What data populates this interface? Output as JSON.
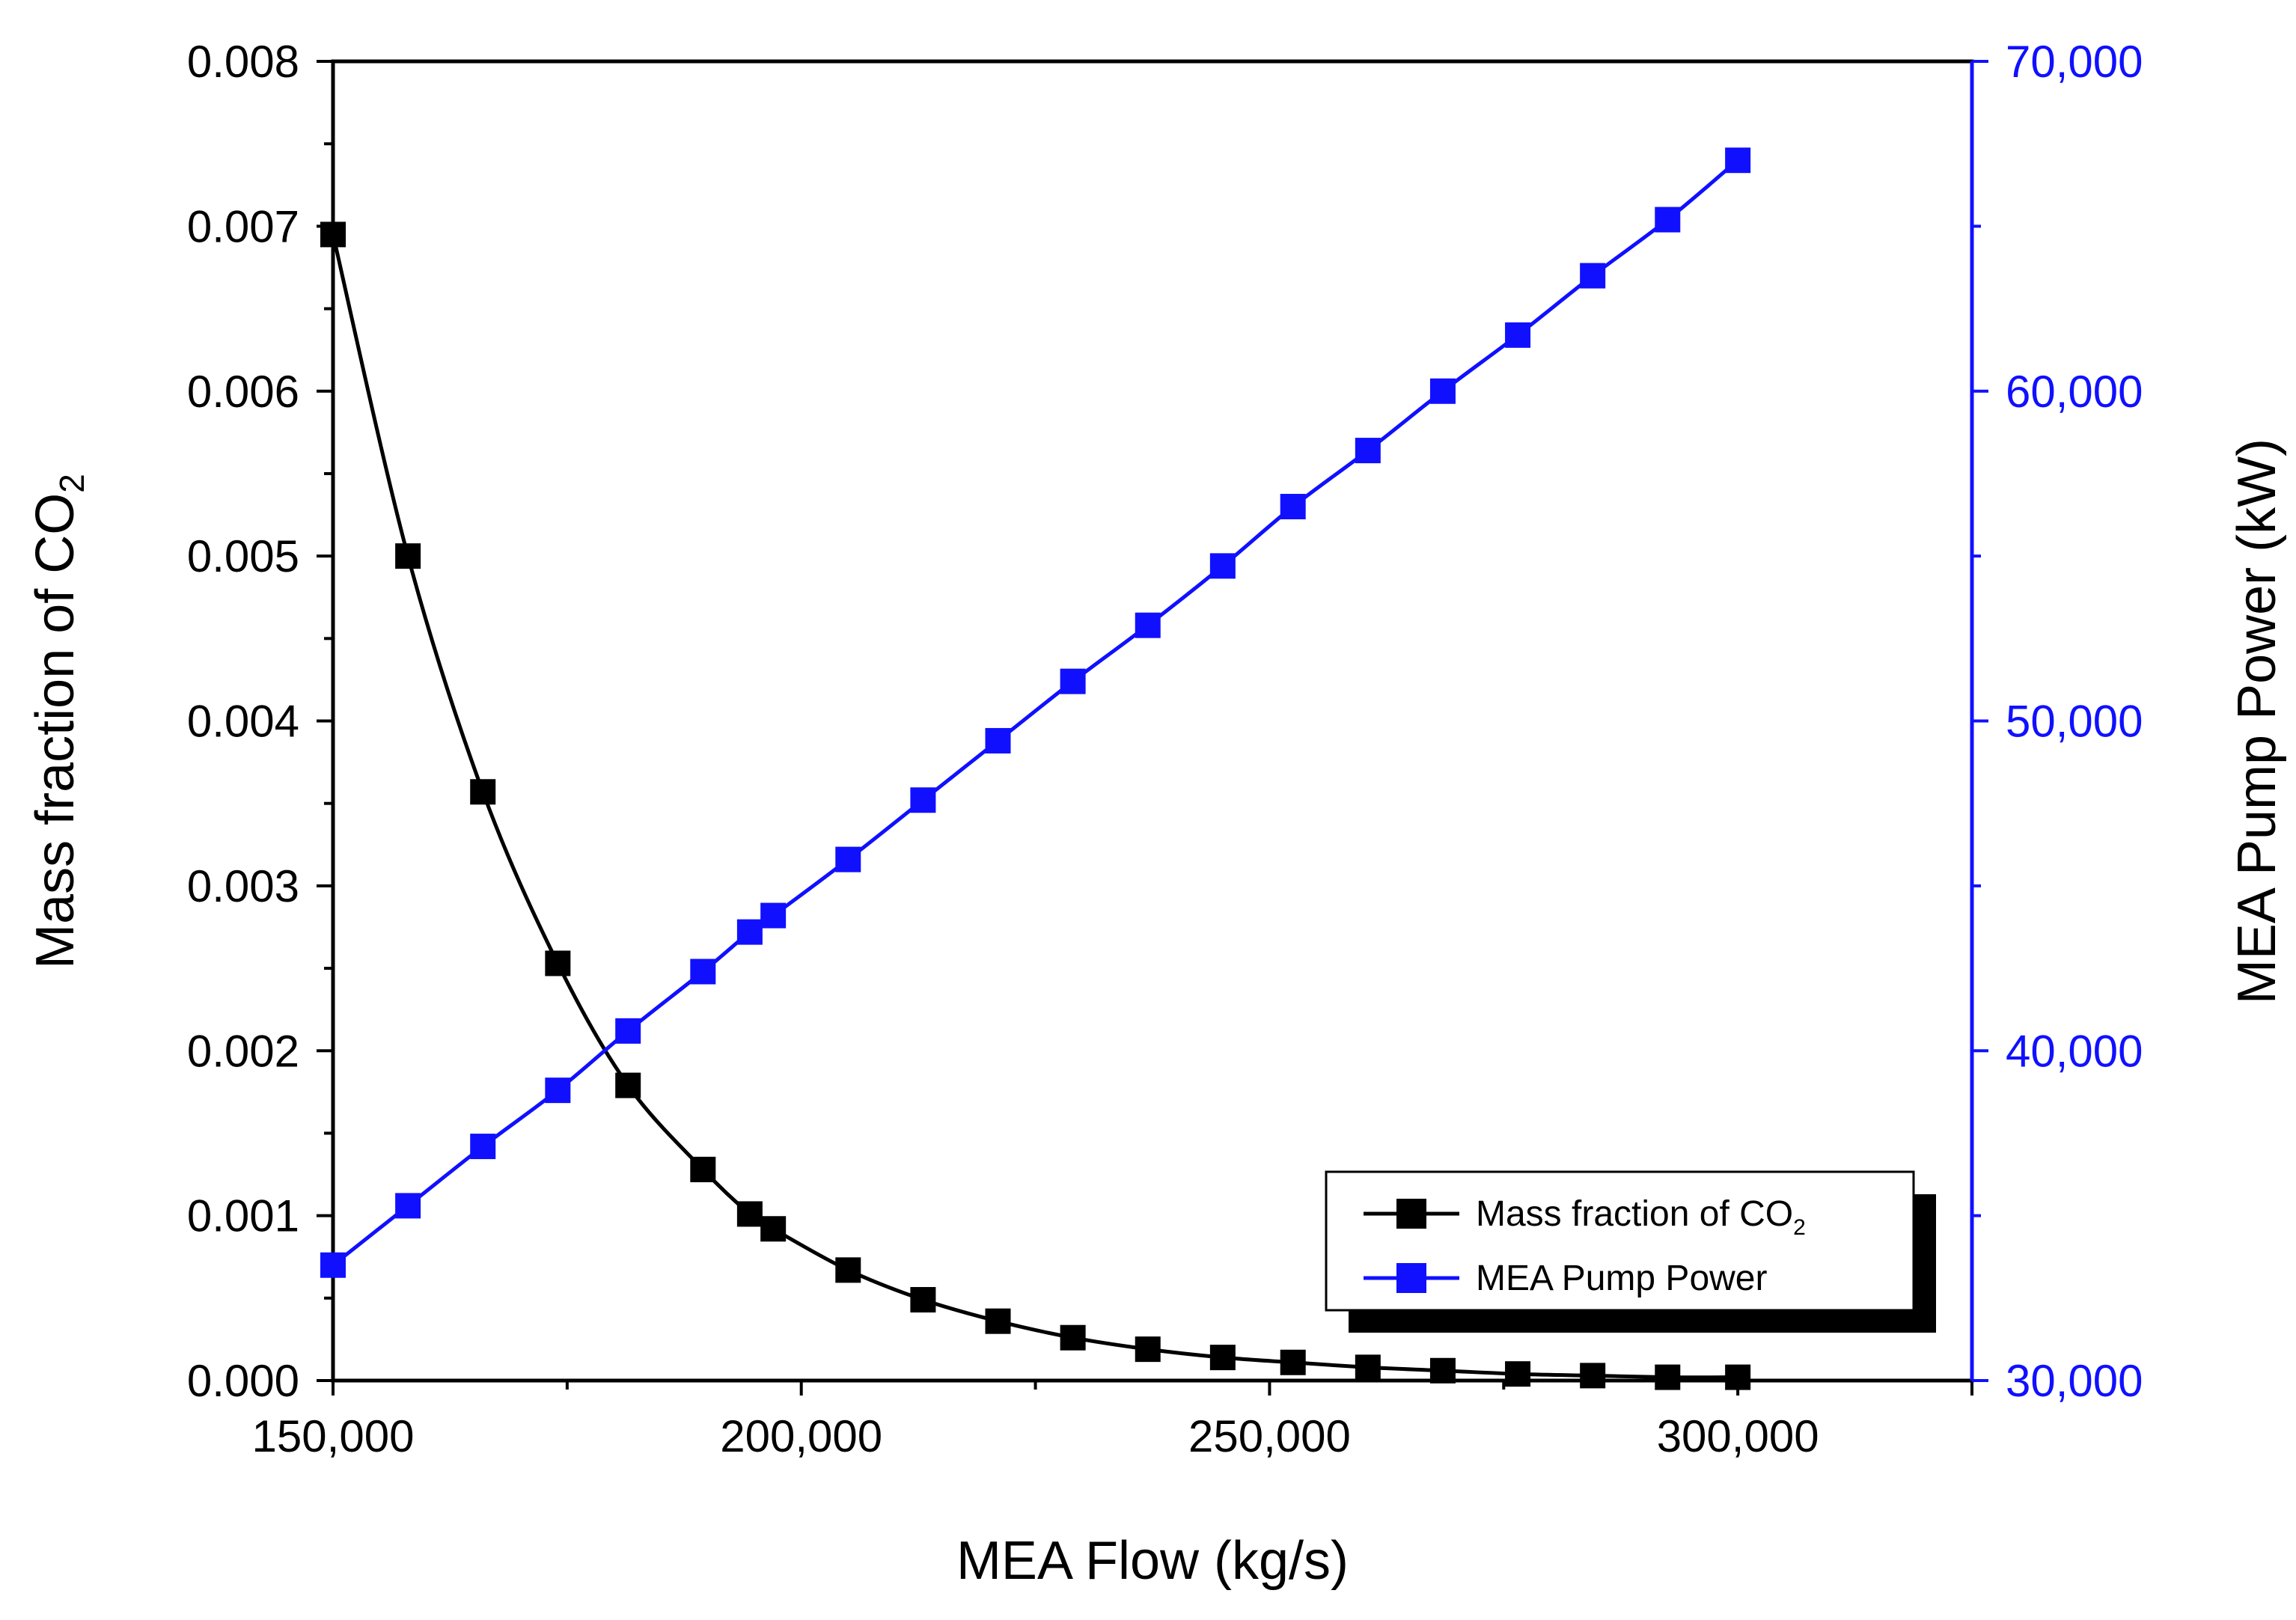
{
  "chart_data": {
    "type": "line",
    "xlabel": "MEA Flow (kg/s)",
    "xlim": [
      150000,
      325000
    ],
    "x_ticks": [
      "150,000",
      "200,000",
      "250,000",
      "300,000"
    ],
    "y_left": {
      "label_main": "Mass fraction of CO",
      "label_sub": "2",
      "lim": [
        0,
        0.008
      ],
      "ticks": [
        "0.000",
        "0.001",
        "0.002",
        "0.003",
        "0.004",
        "0.005",
        "0.006",
        "0.007",
        "0.008"
      ]
    },
    "y_right": {
      "label": "MEA Pump Power (kW)",
      "lim": [
        30000,
        70000
      ],
      "ticks": [
        "30,000",
        "40,000",
        "50,000",
        "60,000",
        "70,000"
      ],
      "color": "#1010ff"
    },
    "series": [
      {
        "name": "Mass fraction of CO",
        "name_sub": "2",
        "axis": "left",
        "color": "#000000",
        "x": [
          150000,
          158000,
          166000,
          174000,
          181500,
          189500,
          194500,
          197000,
          205000,
          213000,
          221000,
          229000,
          237000,
          245000,
          252500,
          260500,
          268500,
          276500,
          284500,
          292500,
          300000
        ],
        "y": [
          0.00695,
          0.005,
          0.00357,
          0.00253,
          0.00179,
          0.00128,
          0.00101,
          0.00092,
          0.00067,
          0.00049,
          0.00036,
          0.00026,
          0.00019,
          0.00014,
          0.00011,
          8e-05,
          6e-05,
          4e-05,
          3e-05,
          2e-05,
          2e-05
        ]
      },
      {
        "name": "MEA Pump Power",
        "axis": "right",
        "color": "#1010ff",
        "x": [
          150000,
          158000,
          166000,
          174000,
          181500,
          189500,
          194500,
          197000,
          205000,
          213000,
          221000,
          229000,
          237000,
          245000,
          252500,
          260500,
          268500,
          276500,
          284500,
          292500,
          300000
        ],
        "y": [
          33500,
          35300,
          37100,
          38800,
          40600,
          42400,
          43600,
          44100,
          45800,
          47600,
          49400,
          51200,
          52900,
          54700,
          56500,
          58200,
          60000,
          61700,
          63500,
          65200,
          67000
        ]
      }
    ],
    "legend_position": "bottom-right"
  }
}
